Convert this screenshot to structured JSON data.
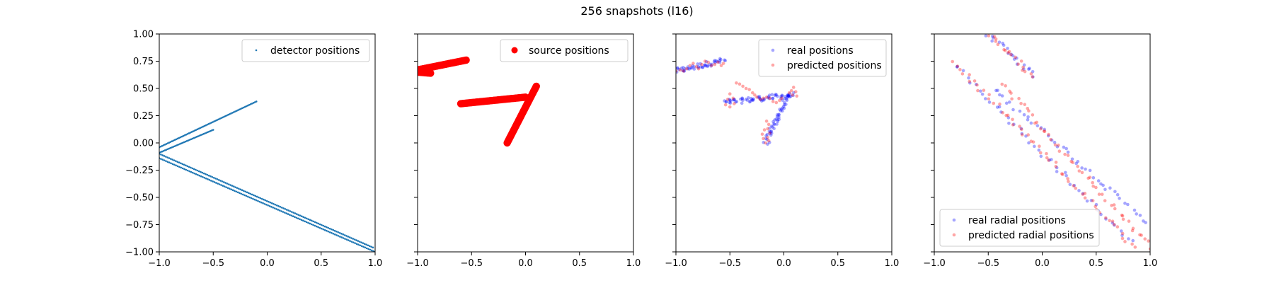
{
  "figure": {
    "title": "256 snapshots (l16)"
  },
  "chart_data": [
    {
      "type": "scatter",
      "title": "",
      "xlim": [
        -1.0,
        1.0
      ],
      "ylim": [
        -1.0,
        1.0
      ],
      "xticks": [
        "−1.0",
        "−0.5",
        "0.0",
        "0.5",
        "1.0"
      ],
      "yticks": [
        "−1.00",
        "−0.75",
        "−0.50",
        "−0.25",
        "0.00",
        "0.25",
        "0.50",
        "0.75",
        "1.00"
      ],
      "legend_position": "upper right",
      "series": [
        {
          "name": "detector positions",
          "color": "#1f77b4",
          "marker": "small-dot",
          "segments": [
            {
              "from": [
                -1.0,
                -0.04
              ],
              "to": [
                -0.1,
                0.38
              ],
              "count": 70
            },
            {
              "from": [
                -1.0,
                -0.09
              ],
              "to": [
                -0.5,
                0.12
              ],
              "count": 40
            },
            {
              "from": [
                -1.0,
                -0.1
              ],
              "to": [
                0.98,
                -0.96
              ],
              "count": 130
            },
            {
              "from": [
                -1.0,
                -0.14
              ],
              "to": [
                1.0,
                -1.0
              ],
              "count": 130
            }
          ]
        }
      ]
    },
    {
      "type": "scatter",
      "title": "",
      "xlim": [
        -1.0,
        1.0
      ],
      "ylim": [
        -1.0,
        1.0
      ],
      "xticks": [
        "−1.0",
        "−0.5",
        "0.0",
        "0.5",
        "1.0"
      ],
      "yticks": [],
      "legend_position": "upper right",
      "series": [
        {
          "name": "source positions",
          "color": "#ff0000",
          "marker": "large-dot",
          "segments": [
            {
              "from": [
                -1.0,
                0.67
              ],
              "to": [
                -0.55,
                0.76
              ],
              "count": 45
            },
            {
              "from": [
                -1.0,
                0.65
              ],
              "to": [
                -0.88,
                0.64
              ],
              "count": 12
            },
            {
              "from": [
                -0.6,
                0.36
              ],
              "to": [
                0.0,
                0.42
              ],
              "count": 60
            },
            {
              "from": [
                -0.17,
                0.0
              ],
              "to": [
                0.1,
                0.52
              ],
              "count": 60
            }
          ]
        }
      ]
    },
    {
      "type": "scatter",
      "title": "",
      "xlim": [
        -1.0,
        1.0
      ],
      "ylim": [
        -1.0,
        1.0
      ],
      "xticks": [
        "−1.0",
        "−0.5",
        "0.0",
        "0.5",
        "1.0"
      ],
      "yticks": [],
      "legend_position": "upper right",
      "series": [
        {
          "name": "real positions",
          "color": "#0000ff",
          "marker": "faint-dot",
          "segments": [
            {
              "from": [
                -1.0,
                0.66
              ],
              "to": [
                -0.55,
                0.76
              ],
              "count": 45
            },
            {
              "from": [
                -0.55,
                0.37
              ],
              "to": [
                0.08,
                0.44
              ],
              "count": 60
            },
            {
              "from": [
                -0.17,
                0.0
              ],
              "to": [
                0.05,
                0.45
              ],
              "count": 50
            }
          ]
        },
        {
          "name": "predicted positions",
          "color": "#ff0000",
          "marker": "faint-dot",
          "points": [
            [
              -1.0,
              0.66
            ],
            [
              -0.96,
              0.67
            ],
            [
              -0.93,
              0.66
            ],
            [
              -0.9,
              0.68
            ],
            [
              -0.87,
              0.71
            ],
            [
              -0.84,
              0.73
            ],
            [
              -0.81,
              0.7
            ],
            [
              -0.79,
              0.68
            ],
            [
              -0.76,
              0.72
            ],
            [
              -0.73,
              0.75
            ],
            [
              -0.7,
              0.74
            ],
            [
              -0.67,
              0.71
            ],
            [
              -0.64,
              0.72
            ],
            [
              -0.61,
              0.74
            ],
            [
              -0.58,
              0.71
            ],
            [
              -0.56,
              0.73
            ],
            [
              -0.44,
              0.55
            ],
            [
              -0.41,
              0.54
            ],
            [
              -0.38,
              0.52
            ],
            [
              -0.35,
              0.5
            ],
            [
              -0.32,
              0.49
            ],
            [
              -0.29,
              0.46
            ],
            [
              -0.27,
              0.44
            ],
            [
              -0.25,
              0.42
            ],
            [
              -0.22,
              0.4
            ],
            [
              -0.19,
              0.41
            ],
            [
              -0.16,
              0.42
            ],
            [
              -0.13,
              0.41
            ],
            [
              -0.1,
              0.38
            ],
            [
              -0.07,
              0.37
            ],
            [
              -0.04,
              0.39
            ],
            [
              -0.02,
              0.41
            ],
            [
              -0.5,
              0.45
            ],
            [
              -0.52,
              0.4
            ],
            [
              -0.54,
              0.35
            ],
            [
              -0.5,
              0.33
            ],
            [
              -0.46,
              0.36
            ],
            [
              -0.47,
              0.41
            ],
            [
              0.07,
              0.48
            ],
            [
              0.09,
              0.51
            ],
            [
              0.11,
              0.47
            ],
            [
              0.12,
              0.43
            ],
            [
              0.08,
              0.44
            ],
            [
              0.05,
              0.46
            ],
            [
              -0.16,
              0.2
            ],
            [
              -0.14,
              0.17
            ],
            [
              -0.15,
              0.13
            ],
            [
              -0.13,
              0.09
            ],
            [
              -0.15,
              0.05
            ],
            [
              -0.14,
              0.02
            ],
            [
              -0.17,
              0.0
            ],
            [
              -0.19,
              0.04
            ],
            [
              -0.2,
              0.08
            ],
            [
              -0.18,
              0.12
            ]
          ]
        }
      ]
    },
    {
      "type": "scatter",
      "title": "",
      "xlim": [
        -1.0,
        1.0
      ],
      "ylim": [
        -1.0,
        1.0
      ],
      "xticks": [
        "−1.0",
        "−0.5",
        "0.0",
        "0.5",
        "1.0"
      ],
      "yticks": [],
      "legend_position": "lower left",
      "series": [
        {
          "name": "real radial positions",
          "color": "#0000ff",
          "marker": "faint-dot",
          "segments": [
            {
              "from": [
                -0.5,
                1.0
              ],
              "to": [
                -0.08,
                0.62
              ],
              "count": 20
            },
            {
              "from": [
                -0.8,
                0.72
              ],
              "to": [
                0.82,
                -0.92
              ],
              "count": 45
            },
            {
              "from": [
                -0.45,
                0.5
              ],
              "to": [
                1.0,
                -0.75
              ],
              "count": 45
            }
          ]
        },
        {
          "name": "predicted radial positions",
          "color": "#ff0000",
          "marker": "faint-dot",
          "segments": [
            {
              "from": [
                -0.48,
                0.98
              ],
              "to": [
                -0.1,
                0.62
              ],
              "count": 18
            },
            {
              "from": [
                -0.82,
                0.74
              ],
              "to": [
                0.85,
                -0.95
              ],
              "count": 55
            },
            {
              "from": [
                -0.38,
                0.55
              ],
              "to": [
                1.0,
                -0.95
              ],
              "count": 50
            }
          ]
        }
      ]
    }
  ]
}
